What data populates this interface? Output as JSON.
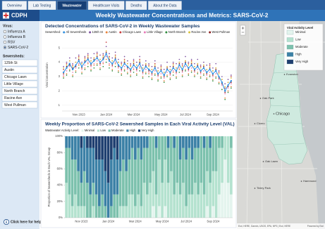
{
  "nav": {
    "tabs": [
      "Overview",
      "Lab Testing",
      "Wastewater",
      "Healthcare Visits",
      "Deaths",
      "About the Data"
    ],
    "active_tab": 2
  },
  "header": {
    "logo": "CDPH",
    "title": "Weekly Wastewater Concentrations and Metrics: SARS-CoV-2"
  },
  "sidebar": {
    "virus_label": "Virus:",
    "viruses": [
      "Influenza A",
      "Influenza B",
      "RSV",
      "SARS-CoV-2"
    ],
    "selected_virus": 3,
    "sewersheds_label": "Sewersheds:",
    "sewersheds": [
      "125th St",
      "Austin",
      "Chicago Lawn",
      "Little Village",
      "North Branch",
      "Racine Ave",
      "West Pullman"
    ],
    "help": "Click here for help"
  },
  "chart_data": [
    {
      "type": "line",
      "title": "Detected Concentrations of SARS-CoV-2 in Weekly Wastewater Samples",
      "legend_title": "Sewershed:",
      "y_label": "Viral Concentration",
      "categories": [
        null,
        null,
        null,
        null,
        null,
        "Nov 2023",
        null,
        null,
        null,
        null,
        null,
        null,
        null,
        null,
        "Jan 2024",
        null,
        null,
        null,
        null,
        null,
        null,
        null,
        null,
        "Mar 2024",
        null,
        null,
        null,
        null,
        null,
        null,
        null,
        null,
        "May 2024",
        null,
        null,
        null,
        null,
        null,
        null,
        null,
        "Jul 2024",
        null,
        null,
        null,
        null,
        null,
        null,
        null,
        null,
        "Sep 2024",
        null,
        null,
        null,
        null,
        null,
        null
      ],
      "ylim": [
        0.6,
        5.6
      ],
      "yticks": [
        1,
        2,
        3,
        4,
        5
      ],
      "grid": true,
      "series": [
        {
          "name": "All Sewersheds",
          "color": "#2f8fe0",
          "style": "line",
          "values": [
            3.3,
            3.6,
            3.9,
            3.5,
            3.8,
            4.1,
            3.7,
            4.0,
            4.2,
            3.9,
            4.1,
            4.3,
            4.0,
            4.2,
            4.6,
            4.1,
            3.9,
            4.2,
            3.8,
            3.6,
            3.9,
            3.7,
            3.5,
            3.8,
            3.6,
            3.9,
            3.4,
            3.7,
            3.5,
            3.3,
            3.6,
            3.2,
            3.4,
            3.1,
            3.5,
            3.3,
            3.6,
            3.4,
            3.8,
            3.5,
            3.9,
            3.6,
            3.8,
            3.5,
            3.7,
            3.4,
            3.6,
            3.3,
            3.5,
            3.2,
            3.4,
            3.0,
            2.6,
            2.0,
            2.4,
            2.7
          ]
        },
        {
          "name": "125th St",
          "color": "#7b4fa0",
          "style": "points",
          "values": [
            3.7,
            4.0,
            4.3,
            3.9,
            4.3,
            4.5,
            4.0,
            4.4,
            4.6,
            4.3,
            4.6,
            4.7,
            4.5,
            4.6,
            5.1,
            4.6,
            4.3,
            4.7,
            4.2,
            4.0,
            4.4,
            4.1,
            3.9,
            4.2,
            4.0,
            4.4,
            3.8,
            4.1,
            3.9,
            3.7,
            4.1,
            3.6,
            3.8,
            3.5,
            4.0,
            3.7,
            4.0,
            3.9,
            4.2,
            3.9,
            4.4,
            4.0,
            4.2,
            3.9,
            4.2,
            3.8,
            4.0,
            3.8,
            3.9,
            3.6,
            3.9,
            3.4,
            3.0,
            2.5,
            2.8,
            3.1
          ]
        },
        {
          "name": "Austin",
          "color": "#e8823a",
          "style": "points",
          "values": [
            3.0,
            3.2,
            3.5,
            3.1,
            3.4,
            3.8,
            3.3,
            3.6,
            3.9,
            3.5,
            3.8,
            3.9,
            3.6,
            3.9,
            4.2,
            3.8,
            3.5,
            3.9,
            3.4,
            3.2,
            3.5,
            3.3,
            3.1,
            3.5,
            3.2,
            3.6,
            3.0,
            3.3,
            3.2,
            2.9,
            3.2,
            2.8,
            3.0,
            2.7,
            3.1,
            2.9,
            3.3,
            3.0,
            3.5,
            3.1,
            3.5,
            3.2,
            3.4,
            3.1,
            3.3,
            3.0,
            3.2,
            2.9,
            3.1,
            2.8,
            3.0,
            2.6,
            2.1,
            1.5,
            2.0,
            2.3
          ]
        },
        {
          "name": "Chicago Lawn",
          "color": "#c83c3c",
          "style": "points",
          "values": [
            3.5,
            3.9,
            4.1,
            3.8,
            4.0,
            4.4,
            3.9,
            4.3,
            4.5,
            4.1,
            4.3,
            4.6,
            4.2,
            4.5,
            5.4,
            4.4,
            4.1,
            4.5,
            4.0,
            3.9,
            4.2,
            3.9,
            3.8,
            4.1,
            3.8,
            4.2,
            3.6,
            3.9,
            3.8,
            3.5,
            3.9,
            3.4,
            3.7,
            3.3,
            3.7,
            3.5,
            3.9,
            3.6,
            4.0,
            3.8,
            4.1,
            3.9,
            4.1,
            3.7,
            3.9,
            3.7,
            3.8,
            3.5,
            3.8,
            3.4,
            3.6,
            3.3,
            2.8,
            2.2,
            2.6,
            3.0
          ]
        },
        {
          "name": "Little Village",
          "color": "#e87ab8",
          "style": "points",
          "values": [
            3.1,
            3.4,
            3.7,
            3.3,
            3.6,
            3.9,
            3.5,
            3.8,
            4.0,
            3.7,
            3.9,
            4.1,
            3.8,
            4.0,
            4.4,
            3.9,
            3.7,
            4.0,
            3.6,
            3.4,
            3.7,
            3.5,
            3.3,
            3.6,
            3.4,
            3.7,
            3.2,
            3.5,
            3.3,
            3.1,
            3.4,
            3.0,
            3.2,
            2.9,
            3.3,
            3.1,
            3.4,
            3.2,
            3.6,
            3.3,
            3.7,
            3.4,
            3.6,
            3.3,
            3.5,
            3.2,
            3.4,
            3.1,
            3.3,
            3.0,
            3.2,
            2.8,
            2.4,
            1.8,
            2.2,
            2.5
          ]
        },
        {
          "name": "North Branch",
          "color": "#2e8b3c",
          "style": "points",
          "values": [
            2.9,
            3.1,
            3.4,
            3.0,
            3.3,
            3.6,
            3.2,
            3.5,
            3.7,
            3.4,
            3.6,
            3.8,
            3.5,
            3.7,
            4.0,
            3.6,
            3.4,
            3.7,
            3.3,
            3.1,
            3.4,
            3.2,
            3.0,
            3.3,
            3.1,
            3.4,
            2.9,
            3.2,
            3.0,
            2.8,
            3.1,
            2.7,
            2.9,
            2.6,
            3.0,
            2.8,
            3.1,
            2.9,
            3.3,
            3.0,
            3.4,
            3.1,
            3.3,
            3.0,
            3.2,
            2.9,
            3.1,
            2.8,
            3.0,
            2.7,
            2.9,
            2.5,
            2.1,
            1.4,
            1.9,
            2.2
          ]
        },
        {
          "name": "Racine Ave",
          "color": "#d8c23a",
          "style": "points",
          "values": [
            3.6,
            3.8,
            4.1,
            3.7,
            4.0,
            4.3,
            3.9,
            4.2,
            4.4,
            4.1,
            4.3,
            4.5,
            4.2,
            4.4,
            4.8,
            4.3,
            4.1,
            4.4,
            4.0,
            3.8,
            4.1,
            3.9,
            3.7,
            4.0,
            3.8,
            4.1,
            3.6,
            3.9,
            3.7,
            3.5,
            3.8,
            3.4,
            3.6,
            3.3,
            3.7,
            3.5,
            3.8,
            3.6,
            4.0,
            3.7,
            4.1,
            3.8,
            4.0,
            3.7,
            3.9,
            3.6,
            3.8,
            3.5,
            3.7,
            3.4,
            3.6,
            3.2,
            2.8,
            2.3,
            2.6,
            2.9
          ]
        },
        {
          "name": "West Pullman",
          "color": "#8b1c1c",
          "style": "points",
          "values": [
            3.2,
            3.7,
            3.8,
            3.6,
            3.7,
            4.2,
            3.6,
            4.1,
            4.3,
            3.8,
            4.2,
            4.4,
            3.9,
            4.3,
            4.7,
            4.2,
            3.8,
            4.3,
            3.7,
            3.5,
            4.0,
            3.6,
            3.4,
            3.9,
            3.5,
            4.0,
            3.3,
            3.8,
            3.4,
            3.2,
            3.7,
            3.1,
            3.5,
            3.0,
            3.6,
            3.2,
            3.7,
            3.3,
            3.9,
            3.4,
            4.0,
            3.5,
            3.9,
            3.4,
            3.8,
            3.3,
            3.7,
            3.2,
            3.6,
            3.1,
            3.5,
            2.9,
            2.5,
            1.9,
            2.3,
            2.6
          ]
        }
      ]
    },
    {
      "type": "bar",
      "stacked": true,
      "title": "Weekly Proportion of SARS-CoV-2 Sewershed Samples in Each Viral Activity Level (VAL)",
      "legend_title": "Wastewater Activity Level:",
      "y_label": "Proportion of Sewersheds in Each VAL Group",
      "categories": [
        null,
        null,
        null,
        null,
        null,
        "Nov 2023",
        null,
        null,
        null,
        null,
        null,
        null,
        null,
        null,
        "Jan 2024",
        null,
        null,
        null,
        null,
        null,
        null,
        null,
        null,
        "Mar 2024",
        null,
        null,
        null,
        null,
        null,
        null,
        null,
        null,
        "May 2024",
        null,
        null,
        null,
        null,
        null,
        null,
        null,
        "Jul 2024",
        null,
        null,
        null,
        null,
        null,
        null,
        null,
        null,
        "Sep 2024",
        null,
        null,
        null,
        null,
        null,
        null
      ],
      "ylim": [
        0,
        100
      ],
      "yticks": [
        {
          "value": 0,
          "label": "0%"
        },
        {
          "value": 20,
          "label": "20%"
        },
        {
          "value": 40,
          "label": "40%"
        },
        {
          "value": 60,
          "label": "60%"
        },
        {
          "value": 80,
          "label": "80%"
        },
        {
          "value": 100,
          "label": "100%"
        }
      ],
      "series": [
        {
          "name": "Minimal",
          "color": "#e4f4ee",
          "values": [
            0,
            0,
            0,
            0,
            0,
            0,
            0,
            0,
            0,
            0,
            0,
            0,
            0,
            0,
            0,
            0,
            0,
            0,
            0,
            0,
            0,
            0,
            0,
            0,
            0,
            0,
            0,
            0,
            0,
            14.3,
            0,
            14.3,
            0,
            14.3,
            0,
            0,
            0,
            0,
            0,
            0,
            0,
            0,
            0,
            0,
            0,
            0,
            0,
            14.3,
            0,
            14.3,
            0,
            28.6,
            42.9,
            71.4,
            42.9,
            28.6
          ]
        },
        {
          "name": "Low",
          "color": "#b4e2cf",
          "values": [
            42.9,
            28.6,
            14.3,
            28.6,
            14.3,
            14.3,
            14.3,
            0,
            0,
            14.3,
            0,
            0,
            0,
            0,
            0,
            0,
            0,
            0,
            14.3,
            14.3,
            14.3,
            28.6,
            28.6,
            14.3,
            28.6,
            14.3,
            42.9,
            28.6,
            42.9,
            42.9,
            28.6,
            57.1,
            42.9,
            57.1,
            42.9,
            57.1,
            28.6,
            42.9,
            28.6,
            42.9,
            14.3,
            28.6,
            28.6,
            42.9,
            28.6,
            42.9,
            28.6,
            42.9,
            42.9,
            42.9,
            57.1,
            57.1,
            42.9,
            28.6,
            57.1,
            57.1
          ]
        },
        {
          "name": "Moderate",
          "color": "#7cc1ad",
          "values": [
            42.9,
            57.1,
            57.1,
            42.9,
            42.9,
            28.6,
            42.9,
            42.9,
            28.6,
            28.6,
            28.6,
            14.3,
            28.6,
            14.3,
            0,
            14.3,
            28.6,
            28.6,
            42.9,
            57.1,
            42.9,
            42.9,
            57.1,
            57.1,
            57.1,
            57.1,
            42.9,
            57.1,
            57.1,
            42.9,
            57.1,
            28.6,
            57.1,
            28.6,
            42.9,
            42.9,
            57.1,
            57.1,
            42.9,
            42.9,
            57.1,
            57.1,
            42.9,
            42.9,
            57.1,
            57.1,
            57.1,
            42.9,
            42.9,
            42.9,
            42.9,
            14.3,
            14.3,
            0,
            0,
            14.3
          ]
        },
        {
          "name": "High",
          "color": "#3b80a6",
          "values": [
            14.3,
            14.3,
            28.6,
            28.6,
            42.9,
            42.9,
            42.9,
            42.9,
            57.1,
            42.9,
            42.9,
            57.1,
            42.9,
            42.9,
            42.9,
            57.1,
            57.1,
            42.9,
            42.9,
            28.6,
            42.9,
            28.6,
            14.3,
            28.6,
            14.3,
            28.6,
            14.3,
            14.3,
            0,
            0,
            14.3,
            0,
            0,
            0,
            14.3,
            0,
            14.3,
            0,
            28.6,
            14.3,
            28.6,
            14.3,
            28.6,
            14.3,
            14.3,
            0,
            14.3,
            0,
            14.3,
            0,
            0,
            0,
            0,
            0,
            0,
            0
          ]
        },
        {
          "name": "Very High",
          "color": "#1f3f70",
          "values": [
            0,
            0,
            0,
            0,
            0,
            14.3,
            0,
            14.3,
            14.3,
            14.3,
            28.6,
            28.6,
            28.6,
            42.9,
            57.1,
            28.6,
            14.3,
            28.6,
            0,
            0,
            0,
            0,
            0,
            0,
            0,
            0,
            0,
            0,
            0,
            0,
            0,
            0,
            0,
            0,
            0,
            0,
            0,
            0,
            0,
            0,
            0,
            0,
            0,
            0,
            0,
            0,
            0,
            0,
            0,
            0,
            0,
            0,
            0,
            0,
            0,
            0
          ]
        }
      ]
    }
  ],
  "map": {
    "legend_title": "Viral Activity Level",
    "legend": [
      "Minimal",
      "Low",
      "Moderate",
      "High",
      "Very High"
    ],
    "legend_colors": [
      "#e4f4ee",
      "#b4e2cf",
      "#7cc1ad",
      "#3b80a6",
      "#1f3f70"
    ],
    "places": [
      "Evanston",
      "Oak Park",
      "Chicago",
      "Cicero",
      "Oak Lawn",
      "Hammond",
      "Tinley Park"
    ],
    "attribution": "Esri, HERE, Garmin, USGS, EPA, NPS | Esri, HERE",
    "powered": "Powered by Esri"
  }
}
